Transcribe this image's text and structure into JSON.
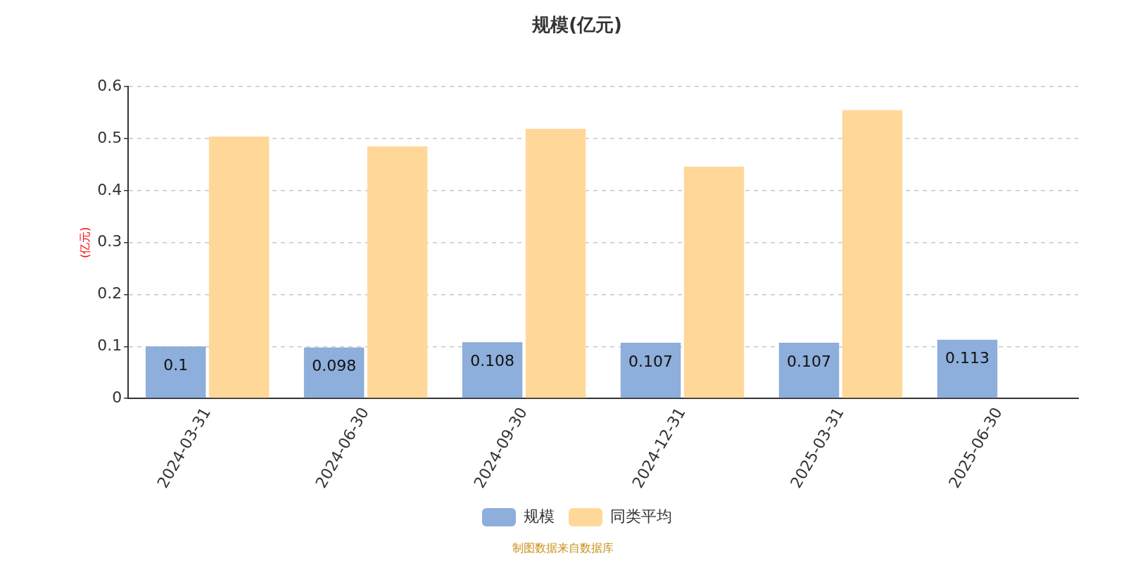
{
  "chart_data": {
    "type": "bar",
    "title": "规模(亿元)",
    "ylabel": "(亿元)",
    "categories": [
      "2024-03-31",
      "2024-06-30",
      "2024-09-30",
      "2024-12-31",
      "2025-03-31",
      "2025-06-30"
    ],
    "series": [
      {
        "name": "规模",
        "color": "#8eaedb",
        "values": [
          0.1,
          0.098,
          0.108,
          0.107,
          0.107,
          0.113
        ],
        "value_labels": [
          "0.1",
          "0.098",
          "0.108",
          "0.107",
          "0.107",
          "0.113"
        ]
      },
      {
        "name": "同类平均",
        "color": "#ffd899",
        "values": [
          0.504,
          0.485,
          0.519,
          0.446,
          0.555,
          null
        ]
      }
    ],
    "ylim": [
      0,
      0.6
    ],
    "yticks": [
      0,
      0.1,
      0.2,
      0.3,
      0.4,
      0.5,
      0.6
    ],
    "grid": "y",
    "legend": "bottom",
    "annotations": [
      "制图数据来自数据库"
    ]
  }
}
